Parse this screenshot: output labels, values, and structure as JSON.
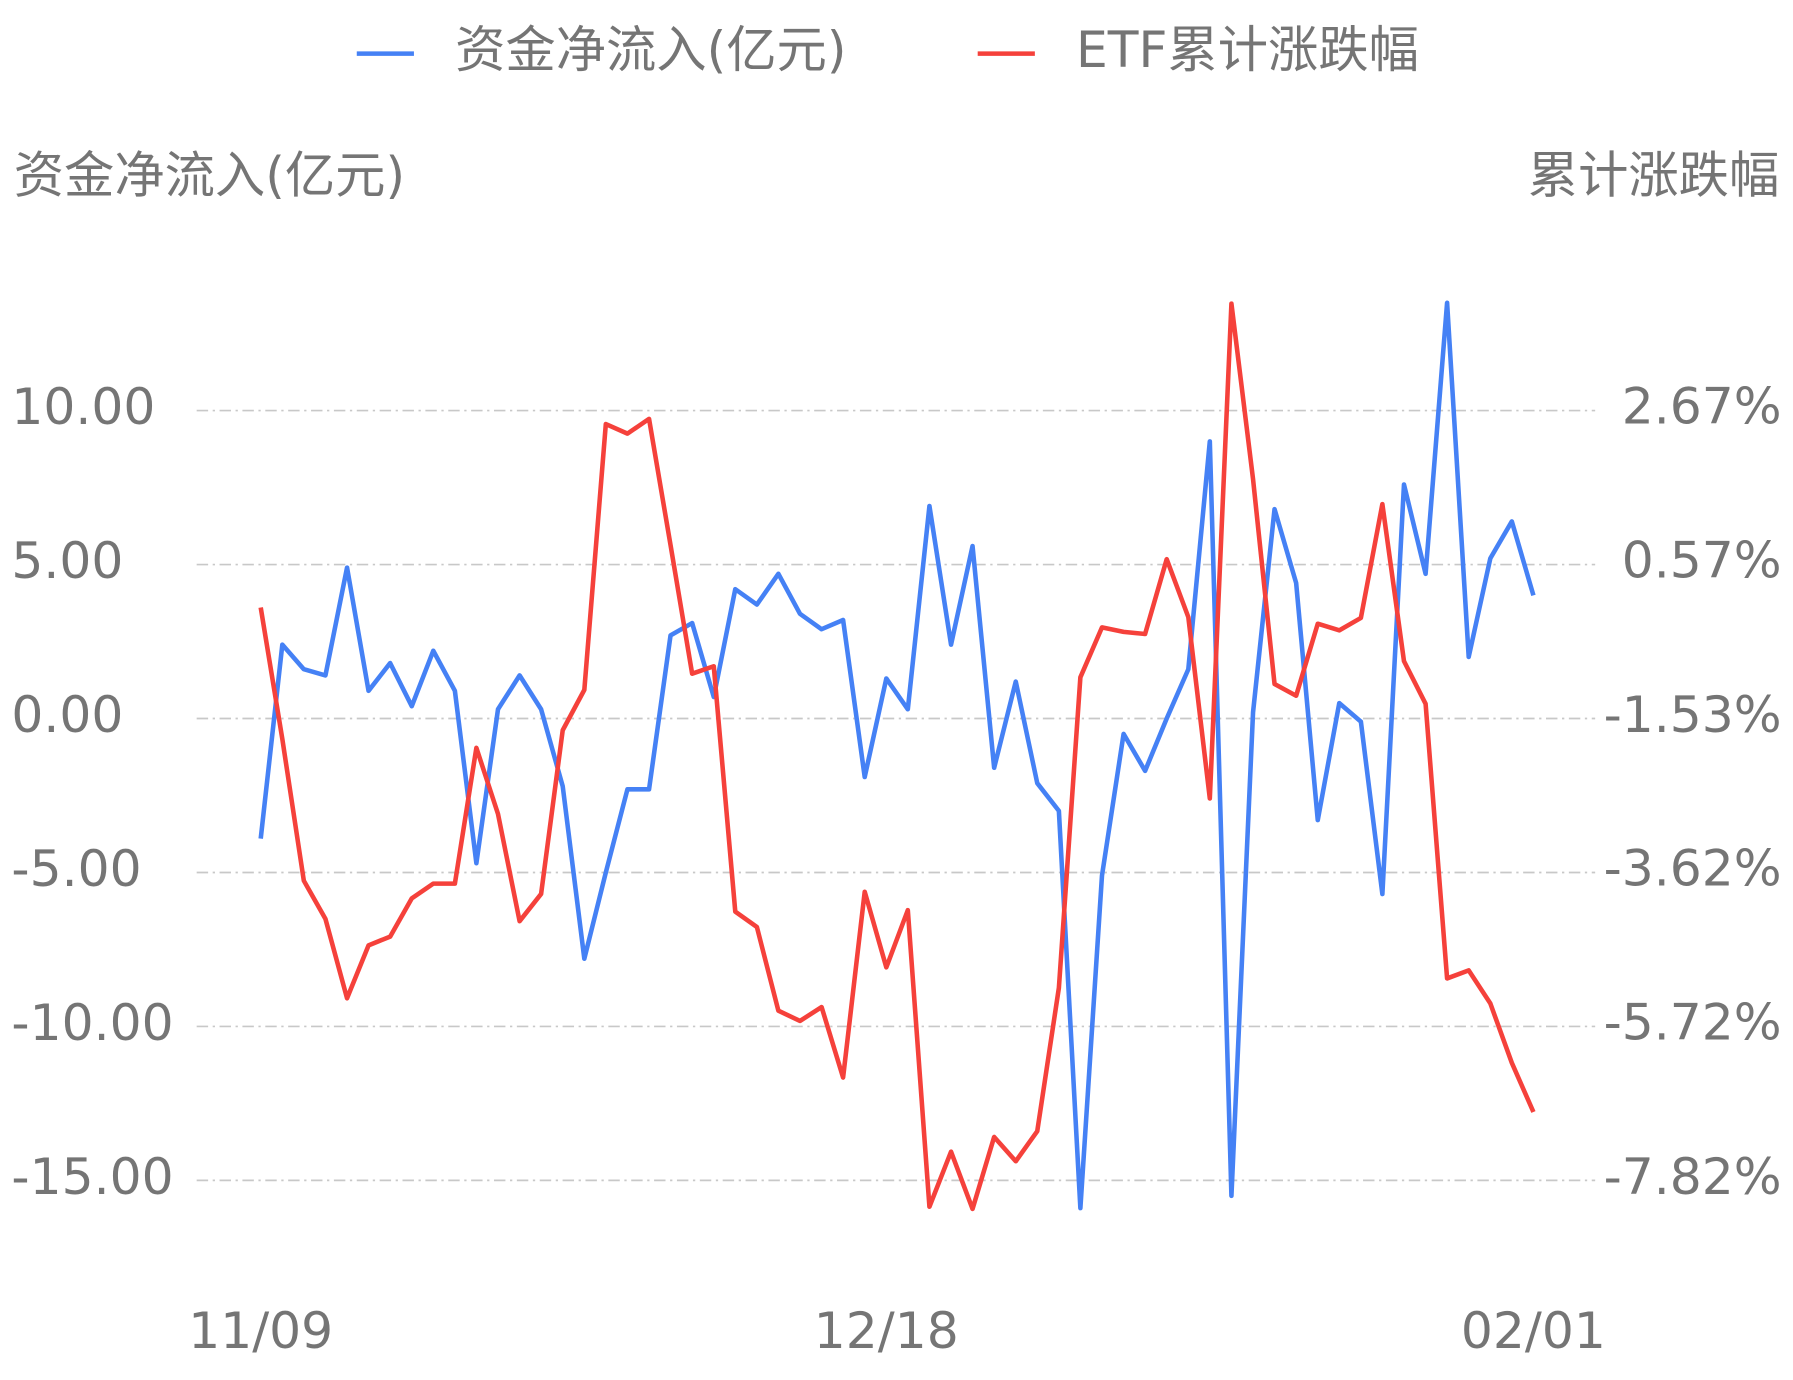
{
  "chart_data": {
    "type": "line",
    "y_label": "资金净流入(亿元)",
    "y2_label": "累计涨跌幅",
    "categories": [
      "11/09",
      null,
      null,
      null,
      null,
      null,
      null,
      null,
      null,
      null,
      null,
      null,
      null,
      null,
      null,
      null,
      null,
      null,
      null,
      null,
      null,
      null,
      null,
      null,
      null,
      null,
      null,
      null,
      null,
      "12/18",
      null,
      null,
      null,
      null,
      null,
      null,
      null,
      null,
      null,
      null,
      null,
      null,
      null,
      null,
      null,
      null,
      null,
      null,
      null,
      null,
      null,
      null,
      null,
      null,
      null,
      null,
      null,
      null,
      null,
      "02/01"
    ],
    "series": [
      {
        "name": "资金净流入(亿元)",
        "color": "#4581f5",
        "axis": "y",
        "values": [
          -3.9,
          2.4,
          1.6,
          1.4,
          4.9,
          0.9,
          1.8,
          0.4,
          2.2,
          0.9,
          -4.7,
          0.3,
          1.4,
          0.3,
          -2.2,
          -7.8,
          -5.0,
          -2.3,
          -2.3,
          2.7,
          3.1,
          0.7,
          4.2,
          3.7,
          4.7,
          3.4,
          2.9,
          3.2,
          -1.9,
          1.3,
          0.3,
          6.9,
          2.4,
          5.6,
          -1.6,
          1.2,
          -2.1,
          -3.0,
          -15.9,
          -5.1,
          -0.5,
          -1.7,
          0.0,
          1.6,
          9.0,
          -15.5,
          0.2,
          6.8,
          4.4,
          -3.3,
          0.5,
          -0.1,
          -5.7,
          7.6,
          4.7,
          13.5,
          2.0,
          5.2,
          6.4,
          4.0
        ]
      },
      {
        "name": "ETF累计涨跌幅",
        "color": "#f5413b",
        "axis": "y2",
        "values": [
          -0.02,
          -1.81,
          -3.74,
          -4.26,
          -5.34,
          -4.62,
          -4.5,
          -3.98,
          -3.78,
          -3.78,
          -1.93,
          -2.83,
          -4.29,
          -3.92,
          -1.69,
          -1.14,
          2.48,
          2.35,
          2.55,
          0.83,
          -0.92,
          -0.82,
          -4.16,
          -4.37,
          -5.51,
          -5.65,
          -5.46,
          -6.42,
          -3.89,
          -4.92,
          -4.14,
          -8.18,
          -7.43,
          -8.21,
          -7.23,
          -7.56,
          -7.15,
          -5.2,
          -0.97,
          -0.29,
          -0.35,
          -0.38,
          0.64,
          -0.15,
          -2.62,
          4.12,
          1.73,
          -1.06,
          -1.22,
          -0.24,
          -0.33,
          -0.16,
          1.39,
          -0.75,
          -1.33,
          -5.07,
          -4.96,
          -5.41,
          -6.22,
          -6.89
        ]
      }
    ],
    "ylim": [
      -17,
      15
    ],
    "yticks": [
      {
        "value": 10,
        "label": "10.00"
      },
      {
        "value": 5,
        "label": "5.00"
      },
      {
        "value": 0,
        "label": "0.00"
      },
      {
        "value": -5,
        "label": "-5.00"
      },
      {
        "value": -10,
        "label": "-10.00"
      },
      {
        "value": -15,
        "label": "-15.00"
      }
    ],
    "y2lim": [
      -8.66,
      4.76
    ],
    "y2ticks": [
      {
        "value": 2.67,
        "label": "2.67%"
      },
      {
        "value": 0.57,
        "label": "0.57%"
      },
      {
        "value": -1.53,
        "label": "-1.53%"
      },
      {
        "value": -3.62,
        "label": "-3.62%"
      },
      {
        "value": -5.72,
        "label": "-5.72%"
      },
      {
        "value": -7.82,
        "label": "-7.82%"
      }
    ],
    "grid": true,
    "legend": "top"
  }
}
